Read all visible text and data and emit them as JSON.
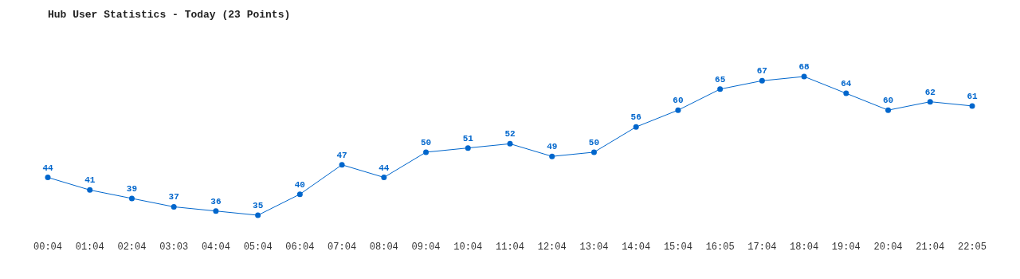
{
  "chart_data": {
    "type": "line",
    "title": "Hub User Statistics - Today (23 Points)",
    "categories": [
      "00:04",
      "01:04",
      "02:04",
      "03:03",
      "04:04",
      "05:04",
      "06:04",
      "07:04",
      "08:04",
      "09:04",
      "10:04",
      "11:04",
      "12:04",
      "13:04",
      "14:04",
      "15:04",
      "16:05",
      "17:04",
      "18:04",
      "19:04",
      "20:04",
      "21:04",
      "22:05"
    ],
    "values": [
      44,
      41,
      39,
      37,
      36,
      35,
      40,
      47,
      44,
      50,
      51,
      52,
      49,
      50,
      56,
      60,
      65,
      67,
      68,
      64,
      60,
      62,
      61
    ],
    "color": "#0066cc",
    "data_labels": true,
    "marker": "circle",
    "line_style": "solid",
    "grid": false
  }
}
